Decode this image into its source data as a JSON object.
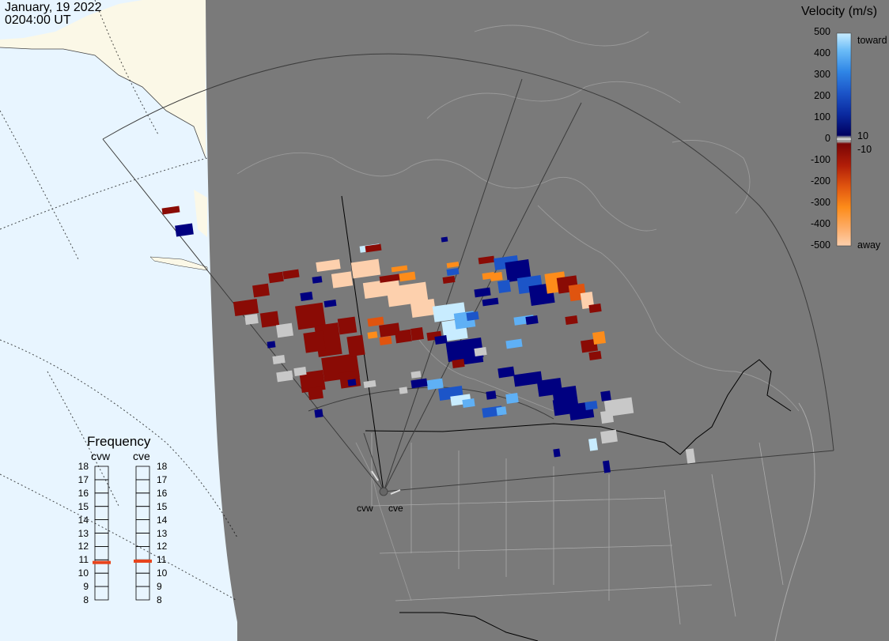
{
  "header": {
    "date": "January, 19 2022",
    "time": "0204:00 UT"
  },
  "legend": {
    "title": "Velocity (m/s)",
    "toward_label": "toward",
    "away_label": "away",
    "ticks": [
      "500",
      "400",
      "300",
      "200",
      "100",
      "0",
      "-100",
      "-200",
      "-300",
      "-400",
      "-500"
    ],
    "inner_labels": [
      "10",
      "-10"
    ],
    "colors": [
      "#fdd0ad",
      "#fd8c1a",
      "#f06a12",
      "#d2410b",
      "#b01d08",
      "#8a0b05",
      "#a0a0a0",
      "#000080",
      "#0a2aa0",
      "#1c55c8",
      "#2f86e6",
      "#5fb0f5",
      "#b2e0ff"
    ]
  },
  "frequency_panel": {
    "title": "Frequency",
    "radars": [
      {
        "name": "cvw",
        "freq_mhz": 10.8
      },
      {
        "name": "cve",
        "freq_mhz": 10.9
      }
    ],
    "scale_min": 8,
    "scale_max": 18,
    "scale_labels": [
      "18",
      "17",
      "16",
      "15",
      "14",
      "13",
      "12",
      "11",
      "10",
      "9",
      "8"
    ],
    "marker_color": "#e8441c"
  },
  "sites": {
    "cvw_label": "cvw",
    "cve_label": "cve"
  },
  "colors": {
    "land": "#7a7a7a",
    "ocean_night": "#e8f5ff",
    "land_day": "#fbf8e7",
    "borders": "#000000",
    "grid_outline": "#555555",
    "ground_scatter": "#c8c8c8"
  }
}
